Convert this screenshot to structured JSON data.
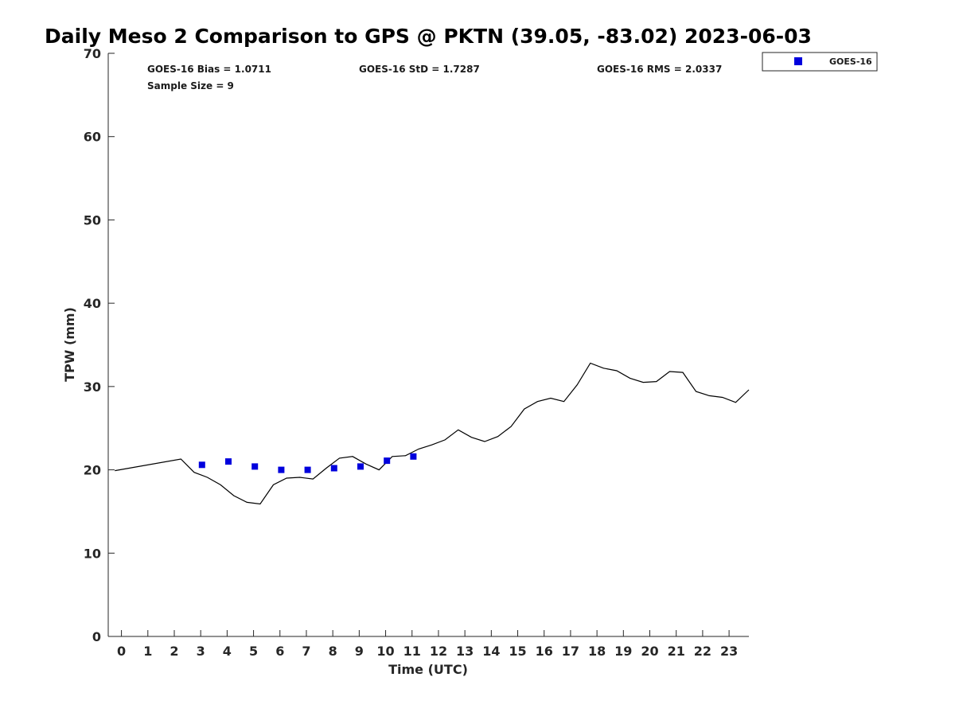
{
  "chart_data": {
    "type": "scatter",
    "title": "Daily Meso 2 Comparison to GPS @ PKTN (39.05, -83.02) 2023-06-03",
    "xlabel": "Time (UTC)",
    "ylabel": "TPW (mm)",
    "xlim": [
      -0.5,
      23.75
    ],
    "ylim": [
      0,
      70
    ],
    "x_ticks": [
      0,
      1,
      2,
      3,
      4,
      5,
      6,
      7,
      8,
      9,
      10,
      11,
      12,
      13,
      14,
      15,
      16,
      17,
      18,
      19,
      20,
      21,
      22,
      23
    ],
    "x_tick_labels": [
      "0",
      "1",
      "2",
      "3",
      "4",
      "5",
      "6",
      "7",
      "8",
      "9",
      "10",
      "11",
      "12",
      "13",
      "14",
      "15",
      "16",
      "17",
      "18",
      "19",
      "20",
      "21",
      "22",
      "23"
    ],
    "y_ticks": [
      0,
      10,
      20,
      30,
      40,
      50,
      60,
      70
    ],
    "y_tick_labels": [
      "0",
      "10",
      "20",
      "30",
      "40",
      "50",
      "60",
      "70"
    ],
    "grid": false,
    "legend_position": "top-right, outside plot",
    "stats": {
      "bias": "GOES-16 Bias = 1.0711",
      "std": "GOES-16 StD = 1.7287",
      "rms": "GOES-16 RMS = 2.0337",
      "sample_size": "Sample Size = 9"
    },
    "series": [
      {
        "kind": "line",
        "color": "#000000",
        "x": [
          -0.25,
          2.25,
          2.75,
          3.25,
          3.75,
          4.25,
          4.75,
          5.25,
          5.75,
          6.25,
          6.75,
          7.25,
          7.75,
          8.25,
          8.75,
          9.25,
          9.75,
          10.25,
          10.75,
          11.25,
          11.75,
          12.25,
          12.75,
          13.25,
          13.75,
          14.25,
          14.75,
          15.25,
          15.75,
          16.25,
          16.75,
          17.25,
          17.75,
          18.25,
          18.75,
          19.25,
          19.75,
          20.25,
          20.75,
          21.25,
          21.75,
          22.25,
          22.75,
          23.25,
          23.75
        ],
        "values": [
          19.9,
          21.3,
          19.7,
          19.1,
          18.2,
          16.9,
          16.1,
          15.9,
          18.2,
          19.0,
          19.1,
          18.9,
          20.2,
          21.4,
          21.6,
          20.7,
          20.0,
          21.6,
          21.7,
          22.5,
          23.0,
          23.6,
          24.8,
          23.9,
          23.4,
          24.0,
          25.2,
          27.3,
          28.2,
          28.6,
          28.2,
          30.2,
          32.8,
          32.2,
          31.9,
          31.0,
          30.5,
          30.6,
          31.8,
          31.7,
          29.4,
          28.9,
          28.7,
          28.1,
          29.6
        ]
      },
      {
        "name": "GOES-16",
        "kind": "scatter",
        "marker": "square",
        "color": "#0000dd",
        "x": [
          3.05,
          4.05,
          5.05,
          6.05,
          7.05,
          8.05,
          9.05,
          10.05,
          11.05
        ],
        "values": [
          20.6,
          21.0,
          20.4,
          20.0,
          20.0,
          20.2,
          20.4,
          21.1,
          21.6
        ]
      }
    ]
  }
}
